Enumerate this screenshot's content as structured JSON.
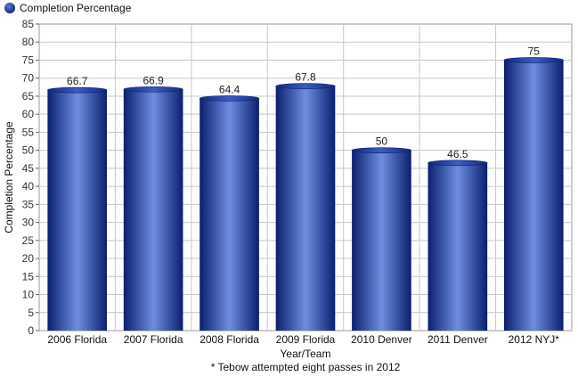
{
  "chart_data": {
    "type": "bar",
    "categories": [
      "2006 Florida",
      "2007 Florida",
      "2008 Florida",
      "2009 Florida",
      "2010 Denver",
      "2011 Denver",
      "2012 NYJ*"
    ],
    "series": [
      {
        "name": "Completion Percentage",
        "values": [
          66.7,
          66.9,
          64.4,
          67.8,
          50,
          46.5,
          75
        ]
      }
    ],
    "data_labels": [
      "66.7",
      "66.9",
      "64.4",
      "67.8",
      "50",
      "46.5",
      "75"
    ],
    "xlabel": "Year/Team",
    "ylabel": "Completion Percentage",
    "footnote": "* Tebow attempted eight passes in 2012",
    "ylim": [
      0,
      85
    ],
    "y_ticks": [
      0,
      5,
      10,
      15,
      20,
      25,
      30,
      35,
      40,
      45,
      50,
      55,
      60,
      65,
      70,
      75,
      80,
      85
    ],
    "grid": true,
    "legend_position": "top-left",
    "colors": {
      "bar": "#1a3a9c",
      "bar_dark": "#0a1e6a",
      "bar_light": "#6f8fe0",
      "grid": "#c8c8c8",
      "axis": "#666666",
      "legend_dot": "#1a3a9c"
    }
  }
}
